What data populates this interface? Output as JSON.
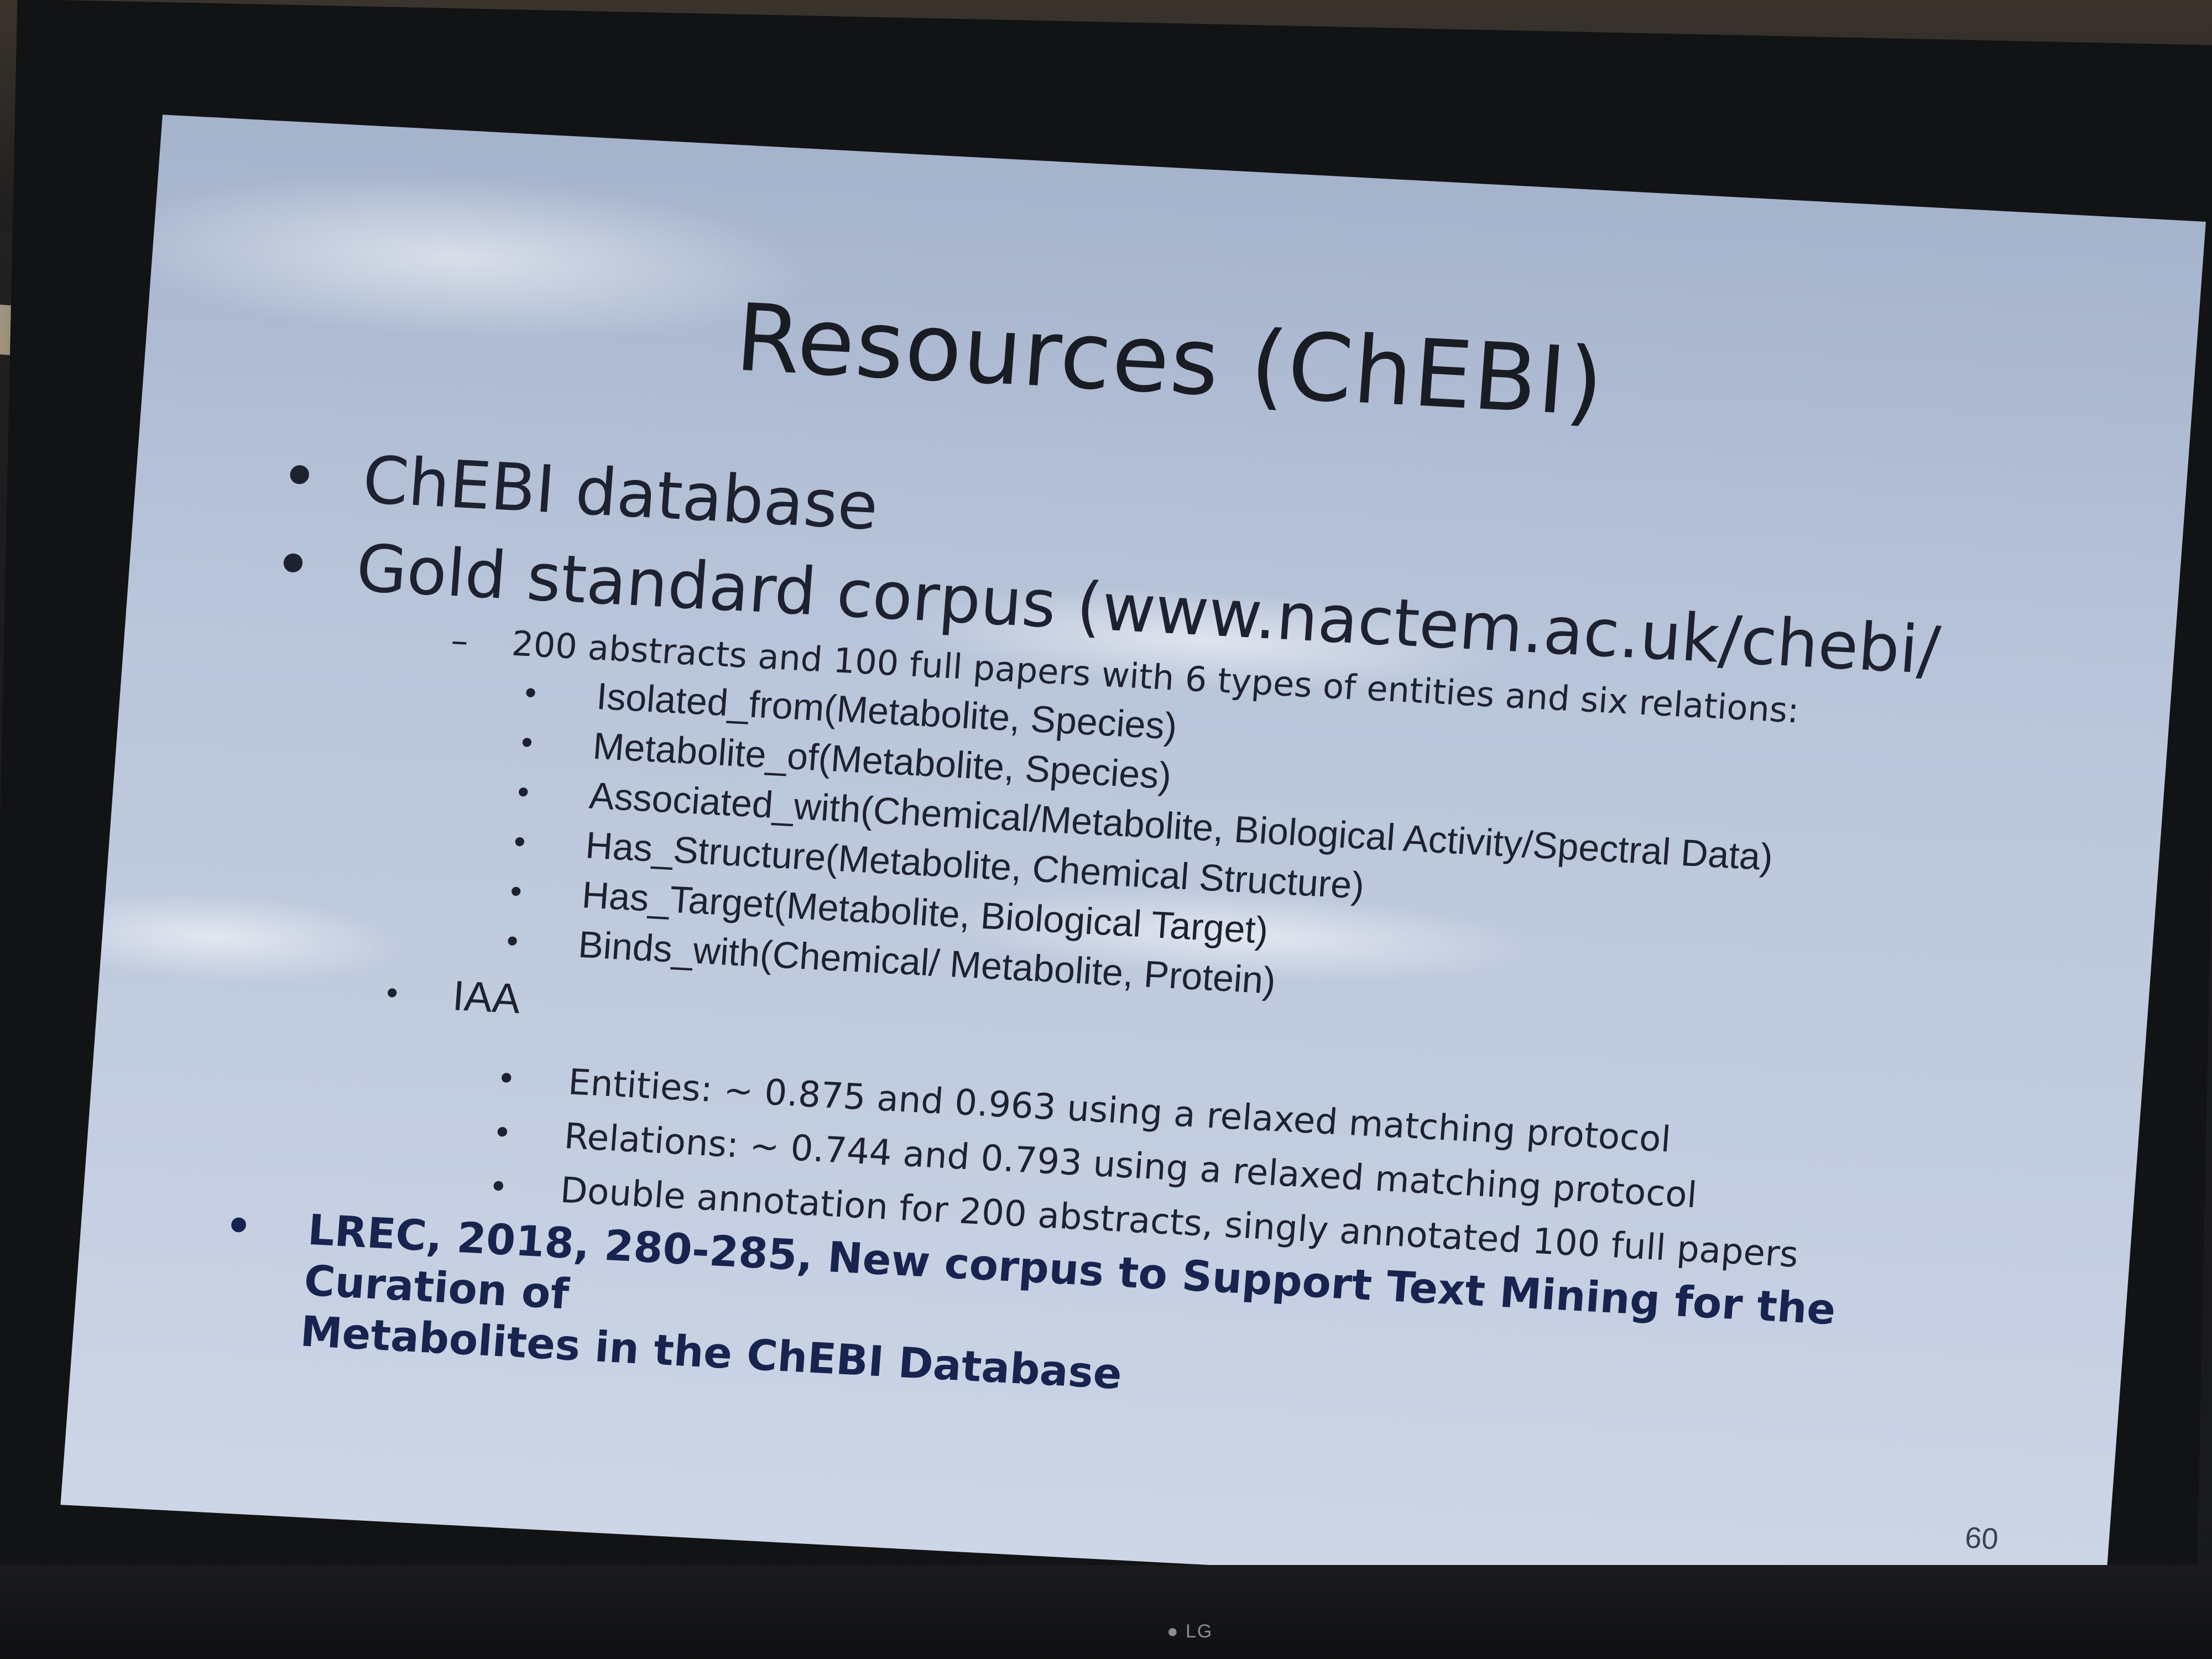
{
  "slide": {
    "title": "Resources (ChEBI)",
    "bullets": [
      {
        "text": "ChEBI database"
      },
      {
        "text": "Gold standard corpus (www.nactem.ac.uk/chebi/"
      }
    ],
    "corpus_detail": "200 abstracts and 100 full papers with 6 types of entities and six relations:",
    "relations": [
      "Isolated_from(Metabolite, Species)",
      "Metabolite_of(Metabolite, Species)",
      "Associated_with(Chemical/Metabolite, Biological Activity/Spectral Data)",
      "Has_Structure(Metabolite, Chemical Structure)",
      "Has_Target(Metabolite, Biological Target)",
      "Binds_with(Chemical/ Metabolite, Protein)"
    ],
    "iaa_label": "IAA",
    "iaa_items": [
      "Entities: ~ 0.875 and 0.963 using a relaxed matching protocol",
      "Relations: ~ 0.744 and 0.793 using a relaxed matching protocol",
      "Double annotation for 200 abstracts, singly annotated 100 full papers"
    ],
    "reference_line1": "LREC, 2018, 280-285, New corpus to Support Text Mining for the Curation of",
    "reference_line2": "Metabolites in the ChEBI Database",
    "page_number": "60"
  },
  "monitor": {
    "brand": "LG"
  },
  "colors": {
    "slide_background": "#bcc7db",
    "text": "#1d2130",
    "reference_text": "#18244f"
  }
}
